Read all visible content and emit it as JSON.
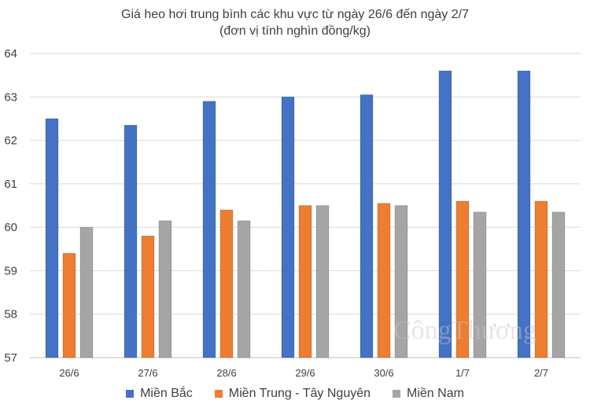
{
  "chart_data": {
    "type": "bar",
    "title": "Giá heo hơi trung bình các khu vực từ ngày 26/6 đến ngày 2/7",
    "subtitle": "(đơn vị tính nghìn đồng/kg)",
    "categories": [
      "26/6",
      "27/6",
      "28/6",
      "29/6",
      "30/6",
      "1/7",
      "2/7"
    ],
    "series": [
      {
        "name": "Miền Bắc",
        "color": "#4472C4",
        "values": [
          62.5,
          62.35,
          62.9,
          63.0,
          63.05,
          63.6,
          63.6
        ]
      },
      {
        "name": "Miền Trung - Tây Nguyên",
        "color": "#ED7D31",
        "values": [
          59.4,
          59.8,
          60.4,
          60.5,
          60.55,
          60.6,
          60.6
        ]
      },
      {
        "name": "Miền Nam",
        "color": "#A5A5A5",
        "values": [
          60.0,
          60.15,
          60.15,
          60.5,
          60.5,
          60.35,
          60.35
        ]
      }
    ],
    "ylim": [
      57,
      64
    ],
    "yticks": [
      "57",
      "58",
      "59",
      "60",
      "61",
      "62",
      "63",
      "64"
    ],
    "grid": true,
    "legend": "bottom"
  },
  "watermark": "CôngThương"
}
